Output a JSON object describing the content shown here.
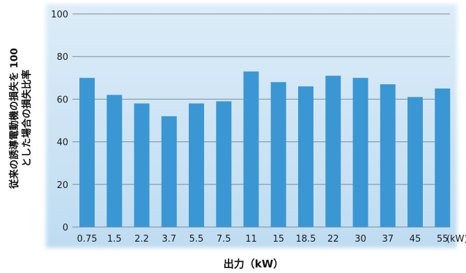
{
  "chart_data": {
    "type": "bar",
    "title": "",
    "xlabel": "出力（kW）",
    "ylabel_line1": "従来の誘導電動機の損失を 100",
    "ylabel_line2": "とした場合の損失比率",
    "x_unit": "(kW)",
    "categories": [
      "0.75",
      "1.5",
      "2.2",
      "3.7",
      "5.5",
      "7.5",
      "11",
      "15",
      "18.5",
      "22",
      "30",
      "37",
      "45",
      "55"
    ],
    "values": [
      70,
      62,
      58,
      52,
      58,
      59,
      73,
      68,
      66,
      71,
      70,
      67,
      61,
      65
    ],
    "ylim": [
      0,
      100
    ],
    "yticks": [
      0,
      20,
      40,
      60,
      80,
      100
    ],
    "grid": true,
    "colors": {
      "bar": "#3a97d3",
      "plot_bg_top": "#dcecf8",
      "plot_bg_bottom": "#bfdcf1",
      "grid": "#7a8a94"
    }
  }
}
